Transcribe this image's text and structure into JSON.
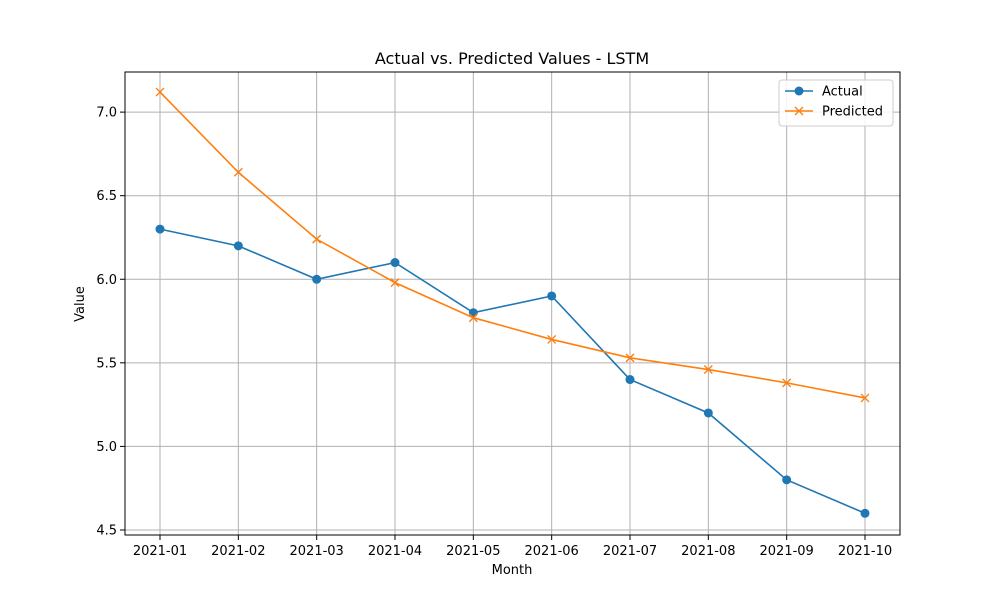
{
  "chart_data": {
    "type": "line",
    "title": "Actual vs. Predicted Values - LSTM",
    "xlabel": "Month",
    "ylabel": "Value",
    "categories": [
      "2021-01",
      "2021-02",
      "2021-03",
      "2021-04",
      "2021-05",
      "2021-06",
      "2021-07",
      "2021-08",
      "2021-09",
      "2021-10"
    ],
    "ylim": [
      4.47,
      7.24
    ],
    "yticks": [
      "4.5",
      "5.0",
      "5.5",
      "6.0",
      "6.5",
      "7.0"
    ],
    "grid": true,
    "legend_position": "top-right",
    "series": [
      {
        "name": "Actual",
        "marker": "circle",
        "color": "#1f77b4",
        "values": [
          6.3,
          6.2,
          6.0,
          6.1,
          5.8,
          5.9,
          5.4,
          5.2,
          4.8,
          4.6
        ]
      },
      {
        "name": "Predicted",
        "marker": "x",
        "color": "#ff7f0e",
        "values": [
          7.12,
          6.64,
          6.24,
          5.98,
          5.77,
          5.64,
          5.53,
          5.46,
          5.38,
          5.29
        ]
      }
    ]
  }
}
